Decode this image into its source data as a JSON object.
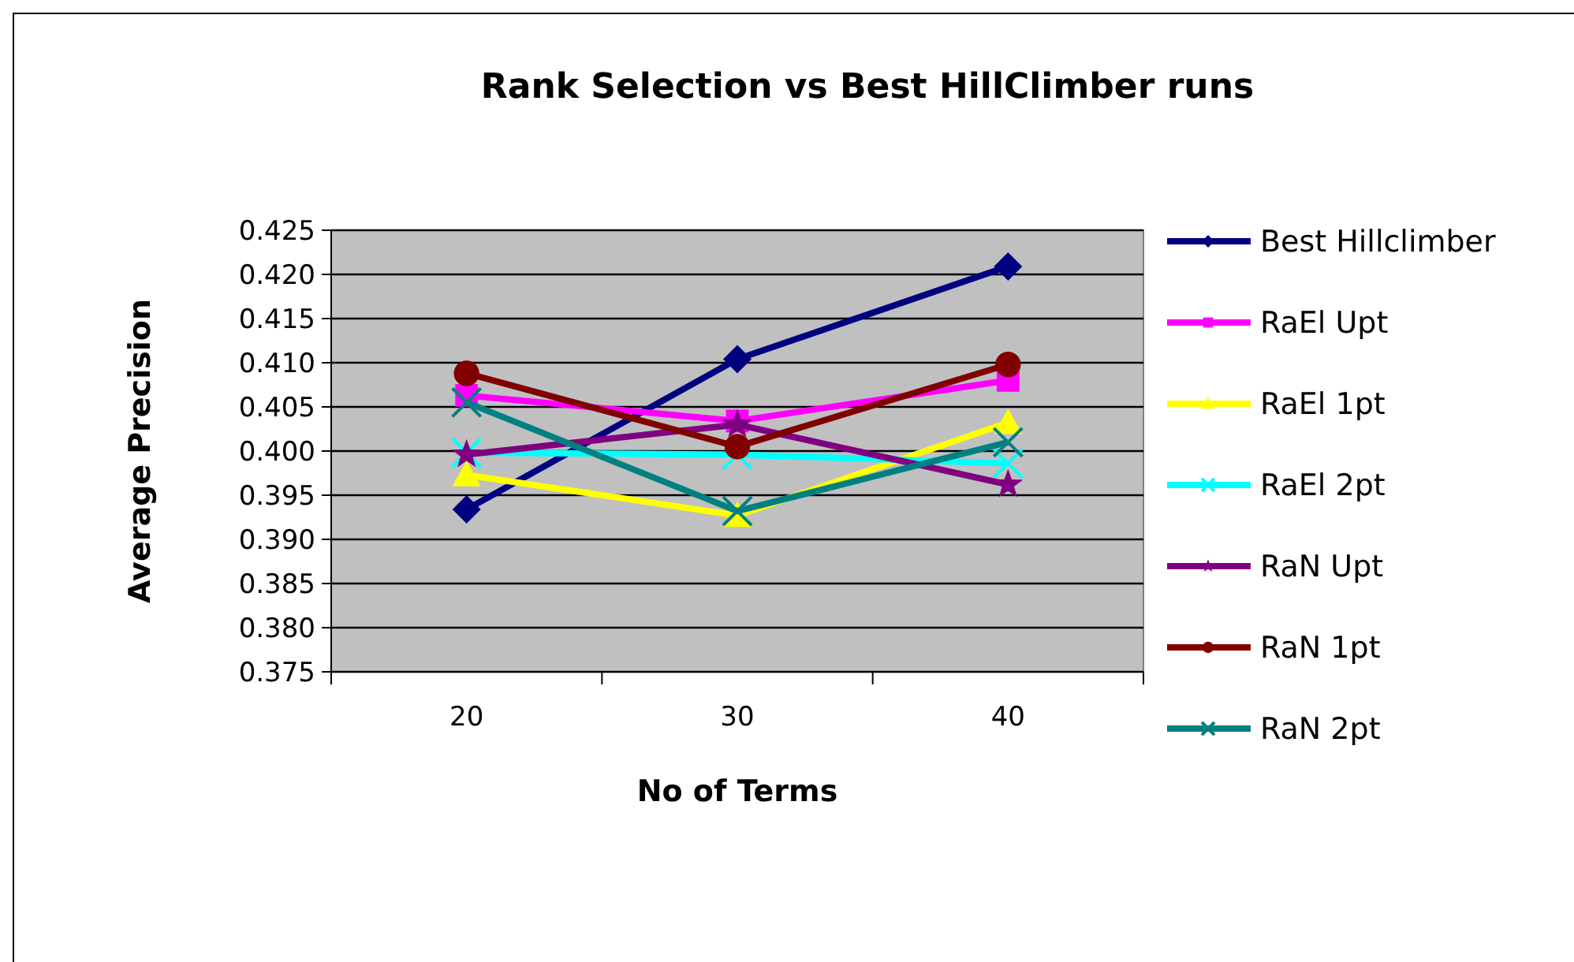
{
  "chart_data": {
    "type": "line",
    "title": "Rank Selection vs Best HillClimber runs",
    "xlabel": "No of Terms",
    "ylabel": "Average Precision",
    "categories": [
      "20",
      "30",
      "40"
    ],
    "ylim": [
      0.375,
      0.425
    ],
    "yticks": [
      {
        "value": 0.375,
        "label": "0.375"
      },
      {
        "value": 0.38,
        "label": "0.380"
      },
      {
        "value": 0.385,
        "label": "0.385"
      },
      {
        "value": 0.39,
        "label": "0.390"
      },
      {
        "value": 0.395,
        "label": "0.395"
      },
      {
        "value": 0.4,
        "label": "0.400"
      },
      {
        "value": 0.405,
        "label": "0.405"
      },
      {
        "value": 0.41,
        "label": "0.410"
      },
      {
        "value": 0.415,
        "label": "0.415"
      },
      {
        "value": 0.42,
        "label": "0.420"
      },
      {
        "value": 0.425,
        "label": "0.425"
      }
    ],
    "grid": "y",
    "legend": "right",
    "series": [
      {
        "name": "Best Hillclimber",
        "color": "#000080",
        "marker": "diamond",
        "values": [
          0.3934,
          0.4104,
          0.4209
        ]
      },
      {
        "name": "RaEl Upt",
        "color": "#ff00ff",
        "marker": "square",
        "values": [
          0.4063,
          0.4034,
          0.408
        ]
      },
      {
        "name": "RaEl 1pt",
        "color": "#ffff00",
        "marker": "triangle",
        "values": [
          0.3973,
          0.3927,
          0.4032
        ]
      },
      {
        "name": "RaEl 2pt",
        "color": "#00ffff",
        "marker": "cross",
        "values": [
          0.3998,
          0.3996,
          0.3986
        ]
      },
      {
        "name": "RaN Upt",
        "color": "#800080",
        "marker": "star",
        "values": [
          0.3996,
          0.403,
          0.3962
        ]
      },
      {
        "name": "RaN 1pt",
        "color": "#800000",
        "marker": "circle",
        "values": [
          0.4088,
          0.4005,
          0.4098
        ]
      },
      {
        "name": "RaN 2pt",
        "color": "#008080",
        "marker": "cross",
        "values": [
          0.4055,
          0.3932,
          0.401
        ]
      }
    ]
  }
}
